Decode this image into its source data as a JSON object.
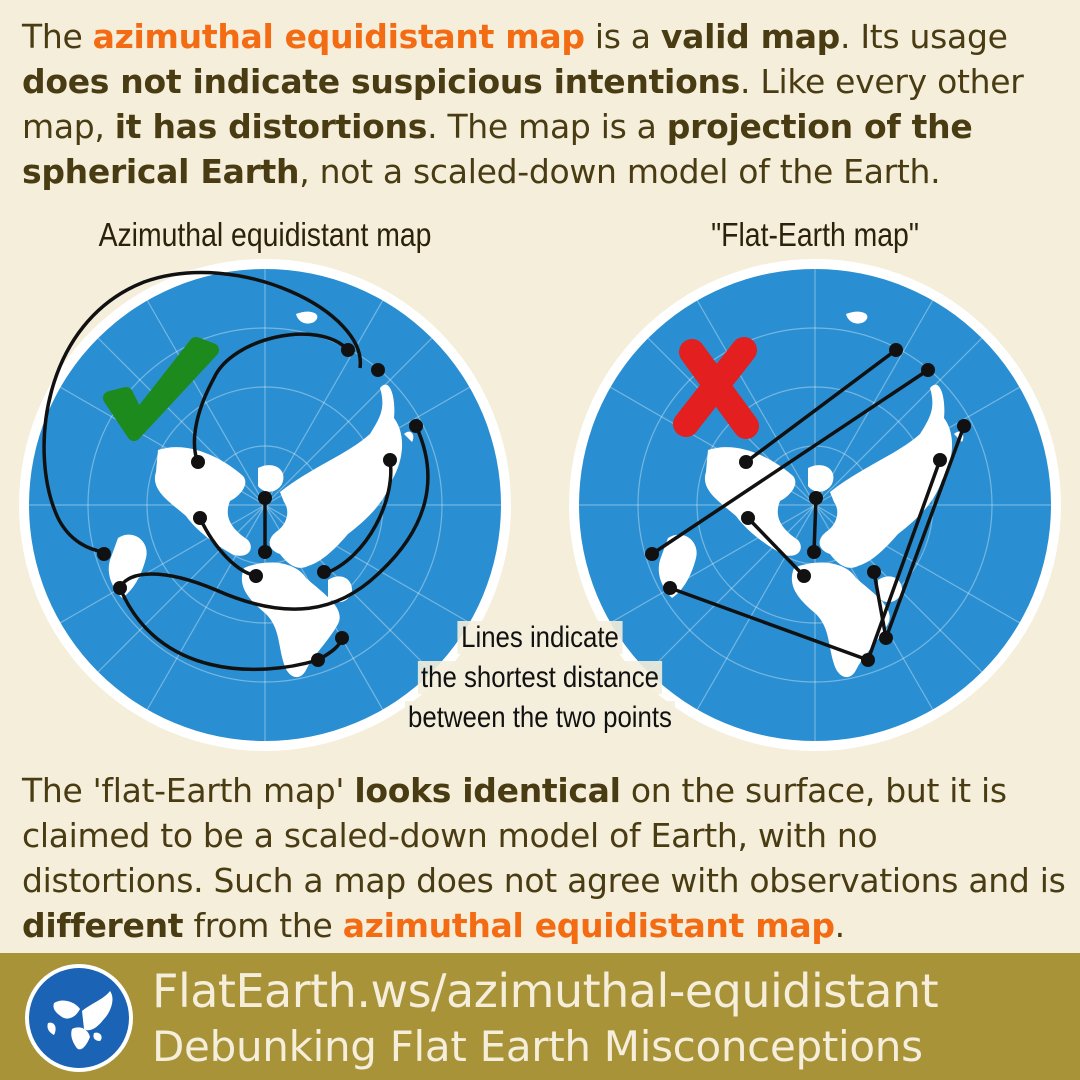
{
  "intro": {
    "s1": "The ",
    "s2": "azimuthal equidistant map",
    "s3": " is a ",
    "s4": "valid map",
    "s5": ". Its usage ",
    "s6": "does not indicate suspicious intentions",
    "s7": ". Like every other map, ",
    "s8": "it has distortions",
    "s9": ". The map is a ",
    "s10": "projection of the spherical Earth",
    "s11": ", not a scaled-down model of the Earth."
  },
  "maps": {
    "left_title": "Azimuthal equidistant map",
    "right_title": "\"Flat-Earth map\"",
    "note_line1": "Lines indicate",
    "note_line2": "the shortest distance",
    "note_line3": "between the two points"
  },
  "outro": {
    "s1": "The 'flat-Earth map' ",
    "s2": "looks identical",
    "s3": " on the surface, but it is claimed to be a scaled-down model of  Earth, with no distortions. Such a map does not agree with observations and is ",
    "s4": "different",
    "s5": " from the ",
    "s6": "azimuthal equidistant map",
    "s7": "."
  },
  "footer": {
    "url": "FlatEarth.ws/azimuthal-equidistant",
    "tagline": "Debunking Flat Earth Misconceptions"
  },
  "icons": [
    "check-mark-icon",
    "cross-mark-icon",
    "globe-logo-icon"
  ],
  "colors": {
    "background": "#f4eedb",
    "text": "#4a3c12",
    "highlight": "#f36b12",
    "ocean": "#2a8fd2",
    "footer": "#a89339",
    "check": "#1d8a1d",
    "cross": "#e41f1f"
  }
}
